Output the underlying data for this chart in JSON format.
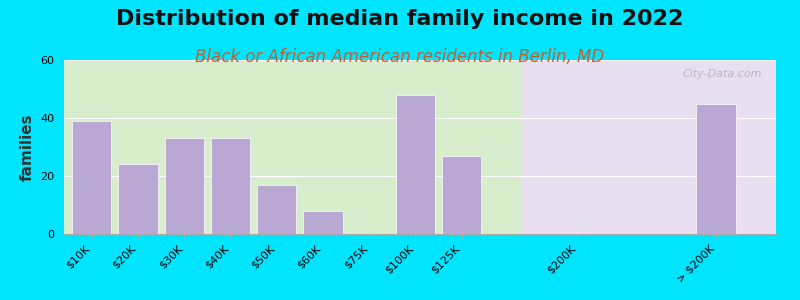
{
  "title": "Distribution of median family income in 2022",
  "subtitle": "Black or African American residents in Berlin, MD",
  "ylabel": "families",
  "categories": [
    "$10K",
    "$20K",
    "$30K",
    "$40K",
    "$50K",
    "$60K",
    "$75K",
    "$100K",
    "$125K",
    "$200K",
    "> $200K"
  ],
  "values": [
    39,
    24,
    33,
    33,
    17,
    8,
    0,
    48,
    27,
    0,
    45
  ],
  "x_positions": [
    0,
    1,
    2,
    3,
    4,
    5,
    6,
    7,
    8,
    10.5,
    13.5
  ],
  "bar_color": "#b9a8d4",
  "bar_edgecolor": "#ffffff",
  "background_outer": "#00e5ff",
  "background_inner_left": "#d8edcc",
  "background_inner_right": "#e8e0f0",
  "xlim": [
    -0.6,
    14.8
  ],
  "ylim": [
    0,
    60
  ],
  "yticks": [
    0,
    20,
    40,
    60
  ],
  "title_fontsize": 16,
  "subtitle_fontsize": 12,
  "subtitle_color": "#c06030",
  "ylabel_fontsize": 11,
  "tick_fontsize": 8,
  "split_x": 9.3,
  "watermark": "City-Data.com"
}
